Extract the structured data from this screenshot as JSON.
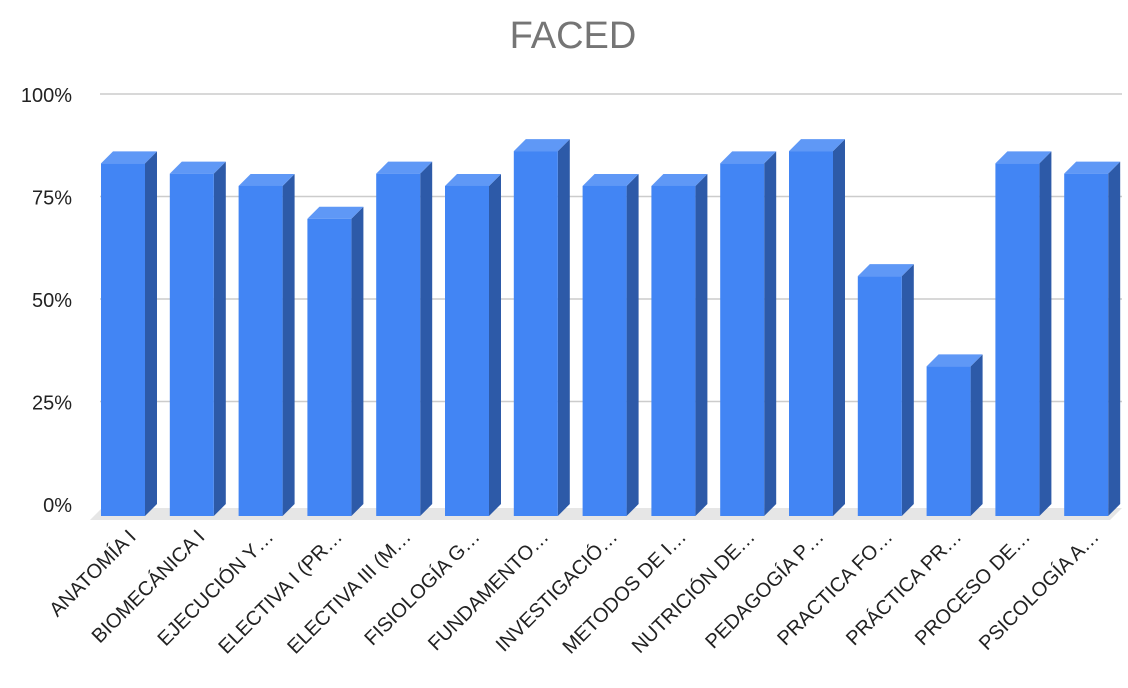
{
  "chart_data": {
    "type": "bar",
    "style": "3d-column",
    "title": "FACED",
    "xlabel": "",
    "ylabel": "",
    "ylim": [
      0,
      1
    ],
    "y_ticks": [
      "0%",
      "25%",
      "50%",
      "75%",
      "100%"
    ],
    "categories": [
      "ANATOMÍA I",
      "BIOMECÁNICA I",
      "EJECUCIÓN Y…",
      "ELECTIVA I (PR…",
      "ELECTIVA III (M…",
      "FISIOLOGÍA G…",
      "FUNDAMENTO…",
      "INVESTIGACIÓ…",
      "METODOS DE I…",
      "NUTRICIÓN DE…",
      "PEDAGOGÍA P…",
      "PRACTICA FO…",
      "PRÁCTICA PR…",
      "PROCESO DE…",
      "PSICOLOGÍA A…"
    ],
    "values": [
      0.86,
      0.835,
      0.805,
      0.725,
      0.835,
      0.805,
      0.89,
      0.805,
      0.805,
      0.86,
      0.89,
      0.585,
      0.365,
      0.86,
      0.835
    ],
    "grid": true,
    "legend": "none",
    "colors": {
      "bar_front": "#4285f4",
      "bar_side": "#2d5aa8",
      "bar_top": "#5f98f6",
      "floor": "#e6e6e6",
      "gridline": "#cccccc",
      "title": "#757575",
      "text": "#222222"
    }
  }
}
